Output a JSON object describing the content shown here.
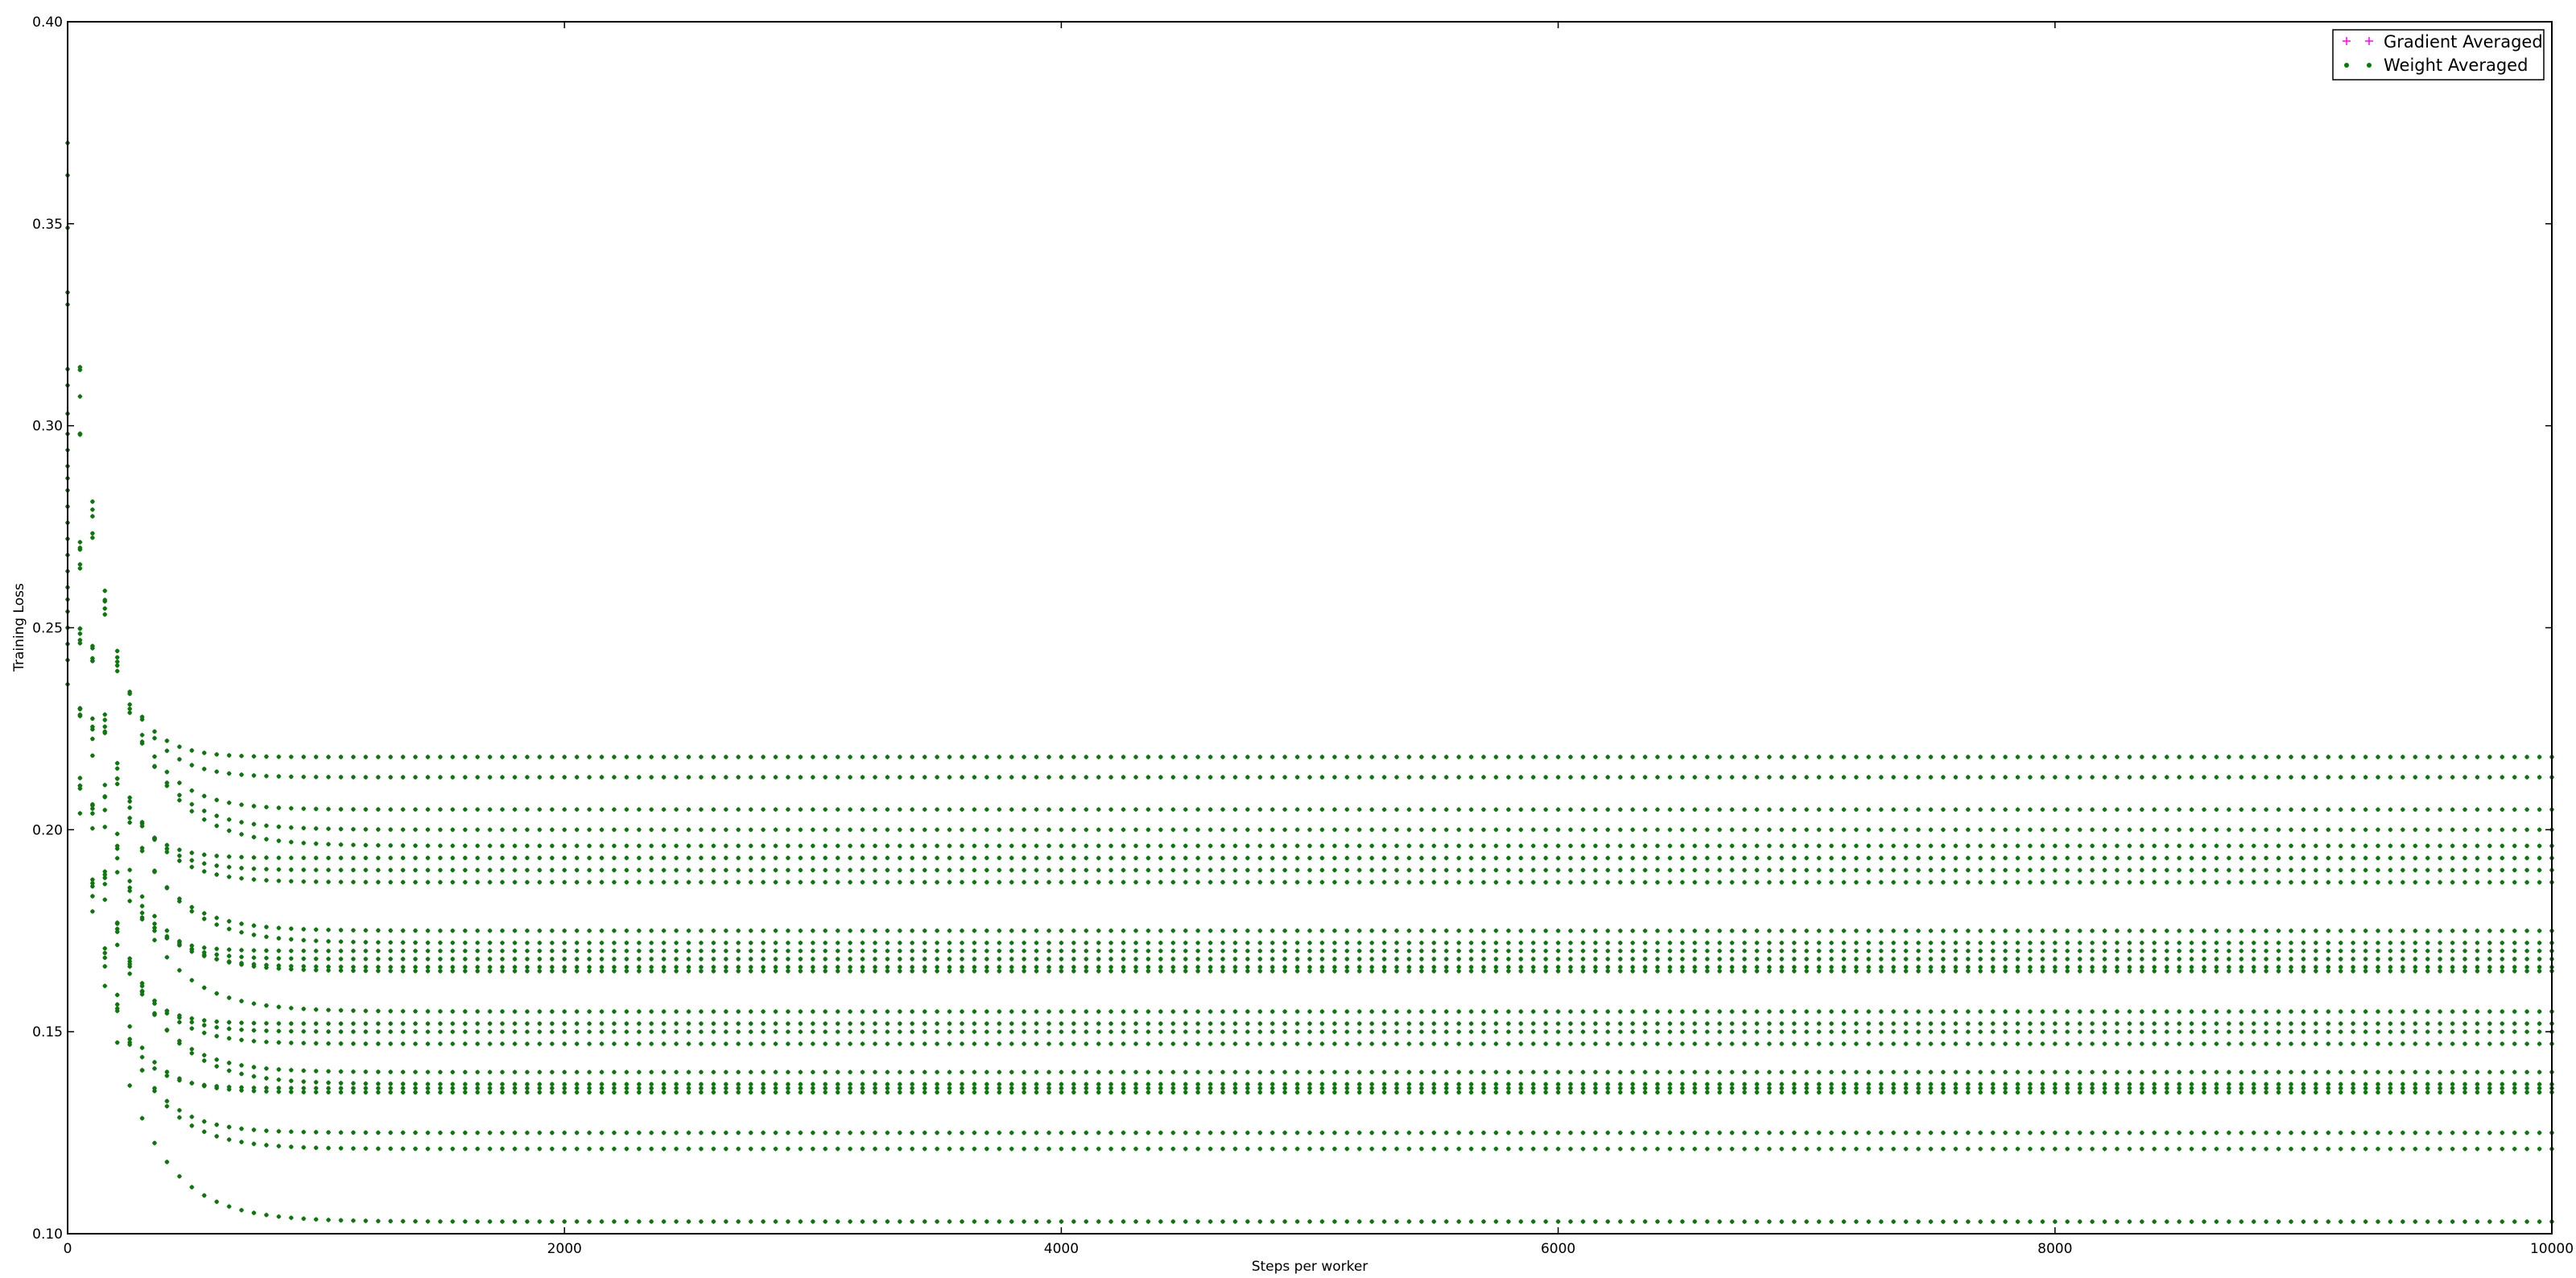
{
  "chart_data": {
    "type": "scatter",
    "title": "",
    "xlabel": "Steps per worker",
    "ylabel": "Training Loss",
    "xlim": [
      0,
      10000
    ],
    "ylim": [
      0.1,
      0.4
    ],
    "xticks": [
      0,
      2000,
      4000,
      6000,
      8000,
      10000
    ],
    "xtick_labels": [
      "0",
      "2000",
      "4000",
      "6000",
      "8000",
      "10000"
    ],
    "yticks": [
      0.1,
      0.15,
      0.2,
      0.25,
      0.3,
      0.35,
      0.4
    ],
    "ytick_labels": [
      "0.10",
      "0.15",
      "0.20",
      "0.25",
      "0.30",
      "0.35",
      "0.40"
    ],
    "grid": false,
    "legend_position": "top-right",
    "series": [
      {
        "name": "Gradient Averaged",
        "marker": "plus",
        "color": "#ff00ff"
      },
      {
        "name": "Weight Averaged",
        "marker": "dot",
        "color": "#008000"
      }
    ],
    "sampling_interval": 50,
    "runs": [
      {
        "start": 0.37,
        "final": 0.218
      },
      {
        "start": 0.362,
        "final": 0.213
      },
      {
        "start": 0.349,
        "final": 0.205
      },
      {
        "start": 0.333,
        "final": 0.2
      },
      {
        "start": 0.33,
        "final": 0.196
      },
      {
        "start": 0.314,
        "final": 0.193
      },
      {
        "start": 0.31,
        "final": 0.19
      },
      {
        "start": 0.303,
        "final": 0.187
      },
      {
        "start": 0.298,
        "final": 0.175
      },
      {
        "start": 0.294,
        "final": 0.172
      },
      {
        "start": 0.29,
        "final": 0.17
      },
      {
        "start": 0.287,
        "final": 0.168
      },
      {
        "start": 0.284,
        "final": 0.166
      },
      {
        "start": 0.28,
        "final": 0.165
      },
      {
        "start": 0.276,
        "final": 0.155
      },
      {
        "start": 0.272,
        "final": 0.152
      },
      {
        "start": 0.268,
        "final": 0.15
      },
      {
        "start": 0.264,
        "final": 0.147
      },
      {
        "start": 0.26,
        "final": 0.14
      },
      {
        "start": 0.257,
        "final": 0.137
      },
      {
        "start": 0.254,
        "final": 0.136
      },
      {
        "start": 0.25,
        "final": 0.135
      },
      {
        "start": 0.246,
        "final": 0.125
      },
      {
        "start": 0.242,
        "final": 0.121
      },
      {
        "start": 0.236,
        "final": 0.103
      }
    ]
  }
}
